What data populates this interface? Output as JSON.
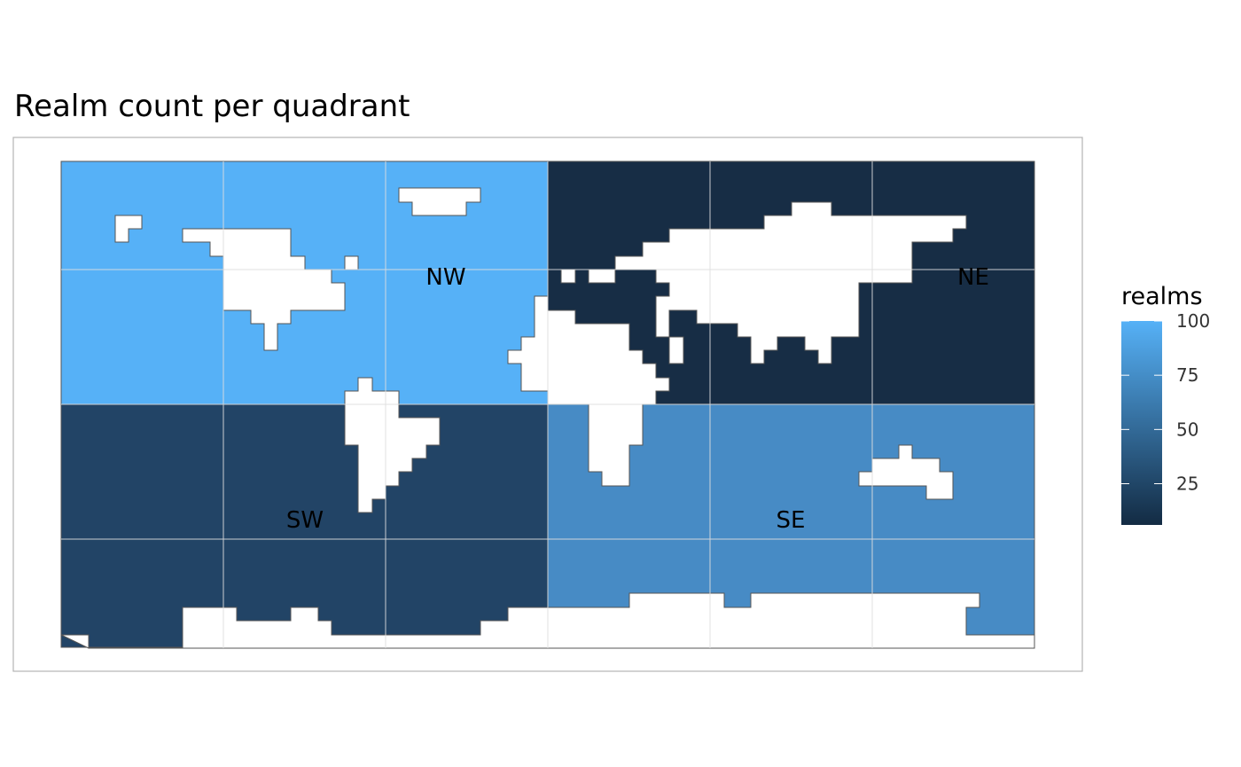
{
  "title": "Realm count per quadrant",
  "legend": {
    "title": "realms",
    "min": 6,
    "max": 100,
    "breaks": [
      25,
      50,
      75,
      100
    ],
    "break_labels": [
      "25",
      "50",
      "75",
      "100"
    ],
    "color_low": "#132B43",
    "color_high": "#56B1F7"
  },
  "chart_data": {
    "type": "heatmap",
    "title": "Realm count per quadrant",
    "legend_title": "realms",
    "legend_position": "right",
    "grid": true,
    "regions": [
      {
        "name": "NW",
        "value": 100,
        "color": "#56B1F7"
      },
      {
        "name": "NE",
        "value": 6,
        "color": "#172D45"
      },
      {
        "name": "SW",
        "value": 30,
        "color": "#224466"
      },
      {
        "name": "SE",
        "value": 70,
        "color": "#478BC5"
      }
    ]
  },
  "colors": {
    "land": "#ffffff",
    "border": "#555555",
    "panel_border": "#b3b3b3",
    "grid": "#dedede"
  }
}
